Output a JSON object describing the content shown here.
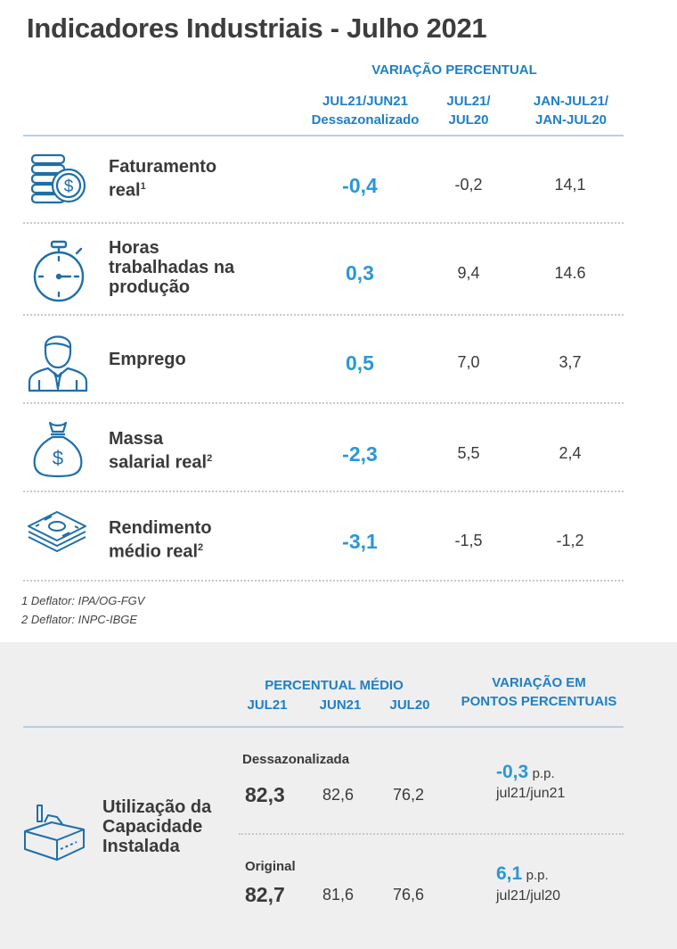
{
  "title": "Indicadores Industriais - Julho 2021",
  "header": {
    "group": "VARIAÇÃO PERCENTUAL",
    "col1_line1": "JUL21/JUN21",
    "col1_line2": "Dessazonalizado",
    "col2_line1": "JUL21/",
    "col2_line2": "JUL20",
    "col3_line1": "JAN-JUL21/",
    "col3_line2": "JAN-JUL20"
  },
  "rows": [
    {
      "icon": "coins-dollar-icon",
      "label_lines": [
        "Faturamento",
        "real"
      ],
      "sup": "1",
      "v1": "-0,4",
      "v2": "-0,2",
      "v3": "14,1"
    },
    {
      "icon": "stopwatch-icon",
      "label_lines": [
        "Horas",
        "trabalhadas na",
        "produção"
      ],
      "sup": "",
      "v1": "0,3",
      "v2": "9,4",
      "v3": "14.6"
    },
    {
      "icon": "employee-icon",
      "label_lines": [
        "Emprego"
      ],
      "sup": "",
      "v1": "0,5",
      "v2": "7,0",
      "v3": "3,7"
    },
    {
      "icon": "money-bag-icon",
      "label_lines": [
        "Massa",
        "salarial real"
      ],
      "sup": "2",
      "v1": "-2,3",
      "v2": "5,5",
      "v3": "2,4"
    },
    {
      "icon": "banknotes-icon",
      "label_lines": [
        "Rendimento",
        "médio real"
      ],
      "sup": "2",
      "v1": "-3,1",
      "v2": "-1,5",
      "v3": "-1,2"
    }
  ],
  "notes": [
    "1 Deflator: IPA/OG-FGV",
    "2 Deflator: INPC-IBGE"
  ],
  "capacity": {
    "header_group": "PERCENTUAL MÉDIO",
    "col_jul21": "JUL21",
    "col_jun21": "JUN21",
    "col_jul20": "JUL20",
    "var_line1": "VARIAÇÃO EM",
    "var_line2": "PONTOS PERCENTUAIS",
    "label_lines": [
      "Utilização da",
      "Capacidade",
      "Instalada"
    ],
    "icon": "factory-box-icon",
    "dessaz": {
      "label": "Dessazonalizada",
      "jul21": "82,3",
      "jun21": "82,6",
      "jul20": "76,2",
      "var": "-0,3",
      "unit": "p.p.",
      "period": "jul21/jun21"
    },
    "original": {
      "label": "Original",
      "jul21": "82,7",
      "jun21": "81,6",
      "jul20": "76,6",
      "var": "6,1",
      "unit": "p.p.",
      "period": "jul21/jul20"
    }
  }
}
